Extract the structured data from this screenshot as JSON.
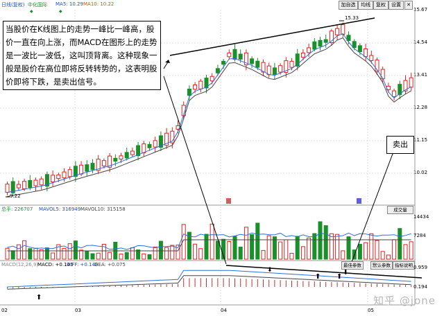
{
  "header": {
    "info_label": "日线(复权)",
    "stock_name": "中化国际",
    "ma5": "MA5: 10.29",
    "ma10": "MA10: 10.22",
    "buttons": [
      "加自选",
      "均线",
      "复权",
      "设置"
    ]
  },
  "price_axis": [
    "15.67",
    "14.54",
    "13.41",
    "12.28",
    "11.15",
    "10.02"
  ],
  "annotations": {
    "high_label": "15.33",
    "low_label": "9.22",
    "callout_text": "当股价在K线图上的走势一峰比一峰高，股价一直在向上涨，而MACD在图形上的走势是一波比一波低，这叫顶背离。这种现象一般是股价在高位即将反转转势的，这表明股价即将下跌，是卖出信号。",
    "sell_label": "卖出"
  },
  "volume_panel": {
    "volume": "总手: 226707",
    "mavol5": "MAVOL5: 316949",
    "mavol10": "MAVOL10: 315158",
    "select_label": "成交量",
    "axis": [
      "14434",
      "7284"
    ]
  },
  "macd_panel": {
    "label": "MACD(12,26,9)",
    "macd": "MACD: +0.145",
    "diff": "DIFF: +0.148",
    "dea": "DEA: +0.075",
    "buttons": [
      "最佳参数",
      "默认参数",
      "指标说明"
    ],
    "axis": [
      "0.959",
      "0.194"
    ]
  },
  "date_axis": [
    "02",
    "03",
    "04",
    "05"
  ],
  "watermark": "知乎 @jone",
  "colors": {
    "up": "#e02020",
    "down": "#1a8f2a",
    "ma": "#2a6fdb",
    "ma2": "#444444"
  }
}
